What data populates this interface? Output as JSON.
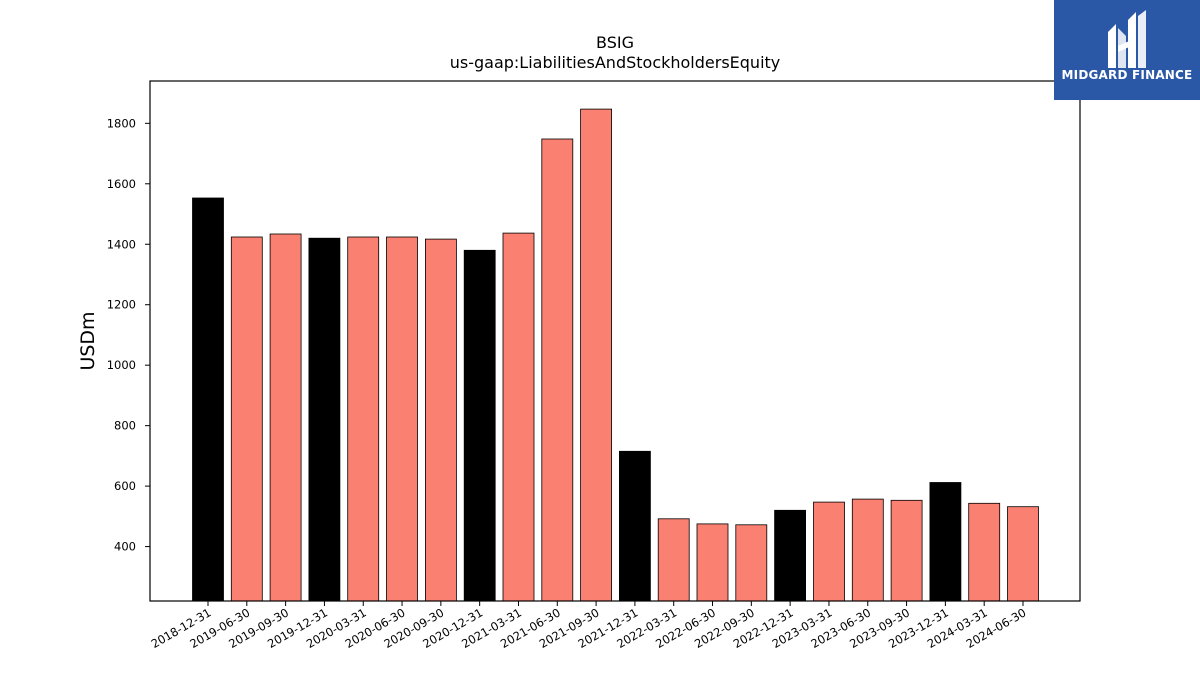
{
  "brand": {
    "name": "MIDGARD FINANCE",
    "color": "#2b57a7"
  },
  "chart_data": {
    "type": "bar",
    "title": "BSIG",
    "subtitle": "us-gaap:LiabilitiesAndStockholdersEquity",
    "xlabel": "",
    "ylabel": "USDm",
    "ylim": [
      220,
      1940
    ],
    "yticks": [
      400,
      600,
      800,
      1000,
      1200,
      1400,
      1600,
      1800
    ],
    "grid": false,
    "categories": [
      "2018-12-31",
      "2019-06-30",
      "2019-09-30",
      "2019-12-31",
      "2020-03-31",
      "2020-06-30",
      "2020-09-30",
      "2020-12-31",
      "2021-03-31",
      "2021-06-30",
      "2021-09-30",
      "2021-12-31",
      "2022-03-31",
      "2022-06-30",
      "2022-09-30",
      "2022-12-31",
      "2023-03-31",
      "2023-06-30",
      "2023-09-30",
      "2023-12-31",
      "2024-03-31",
      "2024-06-30"
    ],
    "values": [
      1553,
      1424,
      1434,
      1420,
      1424,
      1424,
      1417,
      1380,
      1437,
      1748,
      1847,
      715,
      492,
      475,
      472,
      520,
      547,
      557,
      553,
      612,
      543,
      532
    ],
    "colors": {
      "annual": "#000000",
      "quarterly": "#fa8072",
      "edge": "#000000"
    },
    "annual_flags": [
      true,
      false,
      false,
      true,
      false,
      false,
      false,
      true,
      false,
      false,
      false,
      true,
      false,
      false,
      false,
      true,
      false,
      false,
      false,
      true,
      false,
      false
    ]
  }
}
